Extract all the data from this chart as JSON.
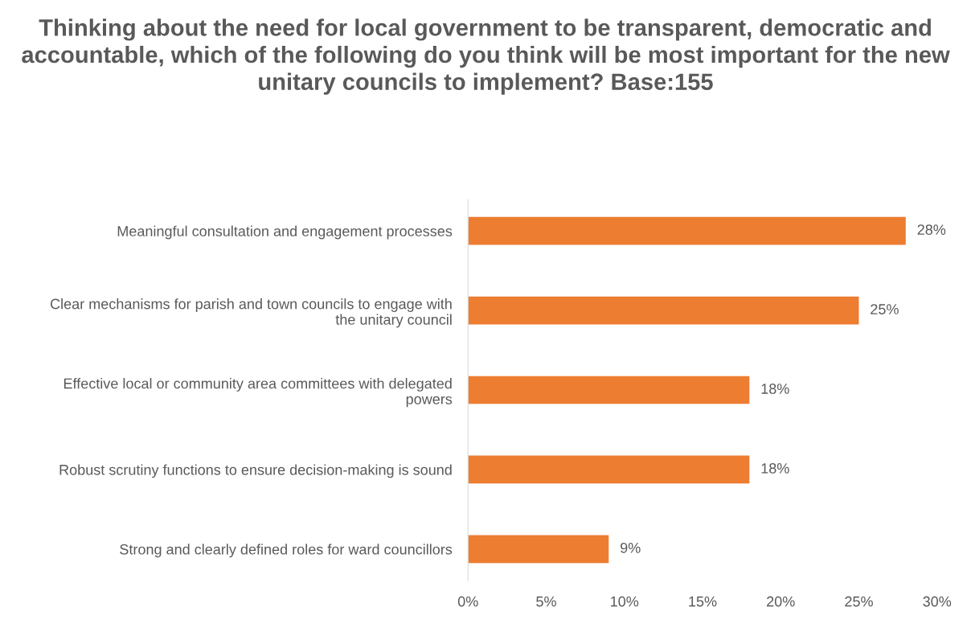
{
  "chart_data": {
    "type": "bar",
    "orientation": "horizontal",
    "title": "Thinking about the need for local government to be transparent, democratic and accountable, which of the following do you think will be most important for the new unitary councils to implement? Base:155",
    "categories": [
      "Meaningful consultation and engagement processes",
      "Clear mechanisms for parish and town councils to engage with the unitary council",
      "Effective local or community area committees with delegated powers",
      "Robust scrutiny functions to ensure decision-making is sound",
      "Strong and clearly defined roles for ward councillors"
    ],
    "values": [
      28,
      25,
      18,
      18,
      9
    ],
    "value_labels": [
      "28%",
      "25%",
      "18%",
      "18%",
      "9%"
    ],
    "color": "#ed7d31",
    "xlim": [
      0,
      30
    ],
    "xticks": [
      {
        "value": 0,
        "label": "0%"
      },
      {
        "value": 5,
        "label": "5%"
      },
      {
        "value": 10,
        "label": "10%"
      },
      {
        "value": 15,
        "label": "15%"
      },
      {
        "value": 20,
        "label": "20%"
      },
      {
        "value": 25,
        "label": "25%"
      },
      {
        "value": 30,
        "label": "30%"
      }
    ],
    "grid": false,
    "legend": false
  }
}
